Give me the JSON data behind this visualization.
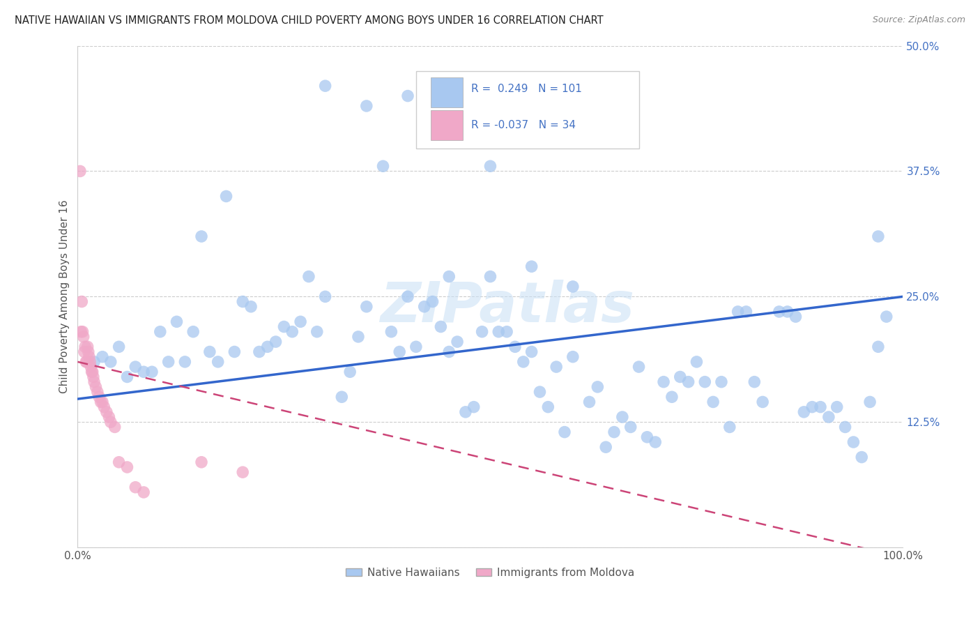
{
  "title": "NATIVE HAWAIIAN VS IMMIGRANTS FROM MOLDOVA CHILD POVERTY AMONG BOYS UNDER 16 CORRELATION CHART",
  "source": "Source: ZipAtlas.com",
  "ylabel": "Child Poverty Among Boys Under 16",
  "xlim": [
    0.0,
    1.0
  ],
  "ylim": [
    0.0,
    0.5
  ],
  "xticks": [
    0.0,
    0.25,
    0.5,
    0.75,
    1.0
  ],
  "xticklabels": [
    "0.0%",
    "",
    "",
    "",
    "100.0%"
  ],
  "yticks": [
    0.0,
    0.125,
    0.25,
    0.375,
    0.5
  ],
  "yticklabels": [
    "",
    "12.5%",
    "25.0%",
    "37.5%",
    "50.0%"
  ],
  "blue_R": 0.249,
  "blue_N": 101,
  "pink_R": -0.037,
  "pink_N": 34,
  "blue_color": "#a8c8f0",
  "pink_color": "#f0a8c8",
  "blue_line_color": "#3366cc",
  "pink_line_color": "#cc4477",
  "watermark": "ZIPatlas",
  "legend_blue_label": "Native Hawaiians",
  "legend_pink_label": "Immigrants from Moldova",
  "blue_scatter_x": [
    0.02,
    0.03,
    0.04,
    0.05,
    0.06,
    0.07,
    0.08,
    0.09,
    0.1,
    0.11,
    0.12,
    0.13,
    0.14,
    0.15,
    0.16,
    0.17,
    0.18,
    0.19,
    0.2,
    0.21,
    0.22,
    0.23,
    0.24,
    0.25,
    0.26,
    0.27,
    0.28,
    0.29,
    0.3,
    0.32,
    0.33,
    0.34,
    0.35,
    0.37,
    0.38,
    0.39,
    0.4,
    0.41,
    0.42,
    0.43,
    0.44,
    0.45,
    0.46,
    0.47,
    0.48,
    0.49,
    0.5,
    0.51,
    0.52,
    0.53,
    0.54,
    0.55,
    0.56,
    0.57,
    0.58,
    0.59,
    0.6,
    0.62,
    0.63,
    0.64,
    0.65,
    0.66,
    0.67,
    0.68,
    0.69,
    0.7,
    0.71,
    0.72,
    0.73,
    0.74,
    0.75,
    0.76,
    0.77,
    0.78,
    0.79,
    0.8,
    0.81,
    0.82,
    0.83,
    0.85,
    0.86,
    0.87,
    0.88,
    0.89,
    0.9,
    0.91,
    0.92,
    0.93,
    0.94,
    0.95,
    0.96,
    0.97,
    0.98,
    0.3,
    0.35,
    0.4,
    0.45,
    0.5,
    0.55,
    0.6,
    0.97
  ],
  "blue_scatter_y": [
    0.185,
    0.19,
    0.185,
    0.2,
    0.17,
    0.18,
    0.175,
    0.175,
    0.215,
    0.185,
    0.225,
    0.185,
    0.215,
    0.31,
    0.195,
    0.185,
    0.35,
    0.195,
    0.245,
    0.24,
    0.195,
    0.2,
    0.205,
    0.22,
    0.215,
    0.225,
    0.27,
    0.215,
    0.25,
    0.15,
    0.175,
    0.21,
    0.24,
    0.38,
    0.215,
    0.195,
    0.25,
    0.2,
    0.24,
    0.245,
    0.22,
    0.195,
    0.205,
    0.135,
    0.14,
    0.215,
    0.27,
    0.215,
    0.215,
    0.2,
    0.185,
    0.195,
    0.155,
    0.14,
    0.18,
    0.115,
    0.19,
    0.145,
    0.16,
    0.1,
    0.115,
    0.13,
    0.12,
    0.18,
    0.11,
    0.105,
    0.165,
    0.15,
    0.17,
    0.165,
    0.185,
    0.165,
    0.145,
    0.165,
    0.12,
    0.235,
    0.235,
    0.165,
    0.145,
    0.235,
    0.235,
    0.23,
    0.135,
    0.14,
    0.14,
    0.13,
    0.14,
    0.12,
    0.105,
    0.09,
    0.145,
    0.2,
    0.23,
    0.46,
    0.44,
    0.45,
    0.27,
    0.38,
    0.28,
    0.26,
    0.31
  ],
  "pink_scatter_x": [
    0.003,
    0.004,
    0.005,
    0.006,
    0.007,
    0.008,
    0.009,
    0.01,
    0.011,
    0.012,
    0.013,
    0.014,
    0.015,
    0.016,
    0.017,
    0.018,
    0.019,
    0.02,
    0.022,
    0.024,
    0.026,
    0.028,
    0.03,
    0.032,
    0.035,
    0.038,
    0.04,
    0.045,
    0.05,
    0.06,
    0.07,
    0.08,
    0.15,
    0.2
  ],
  "pink_scatter_y": [
    0.375,
    0.215,
    0.245,
    0.215,
    0.21,
    0.195,
    0.2,
    0.185,
    0.185,
    0.2,
    0.195,
    0.19,
    0.185,
    0.18,
    0.175,
    0.175,
    0.17,
    0.165,
    0.16,
    0.155,
    0.15,
    0.145,
    0.145,
    0.14,
    0.135,
    0.13,
    0.125,
    0.12,
    0.085,
    0.08,
    0.06,
    0.055,
    0.085,
    0.075
  ]
}
